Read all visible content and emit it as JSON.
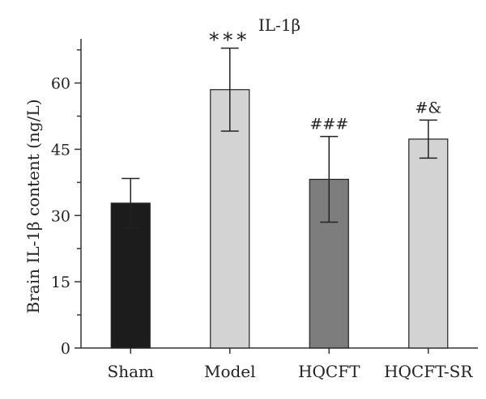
{
  "chart_data": {
    "type": "bar",
    "title": "IL-1β",
    "xlabel": "",
    "ylabel": "Brain IL-1β content (ng/L)",
    "ylim": [
      0,
      70
    ],
    "yticks": [
      0,
      15,
      30,
      45,
      60
    ],
    "grid": false,
    "categories": [
      "Sham",
      "Model",
      "HQCFT",
      "HQCFT-SR"
    ],
    "values": [
      32.8,
      58.5,
      38.2,
      47.3
    ],
    "errors": [
      5.6,
      9.4,
      9.7,
      4.3
    ],
    "annotations": [
      "",
      "***",
      "###",
      "#&"
    ],
    "colors": [
      "#1c1c1c",
      "#d3d3d3",
      "#7d7d7d",
      "#d3d3d3"
    ]
  }
}
